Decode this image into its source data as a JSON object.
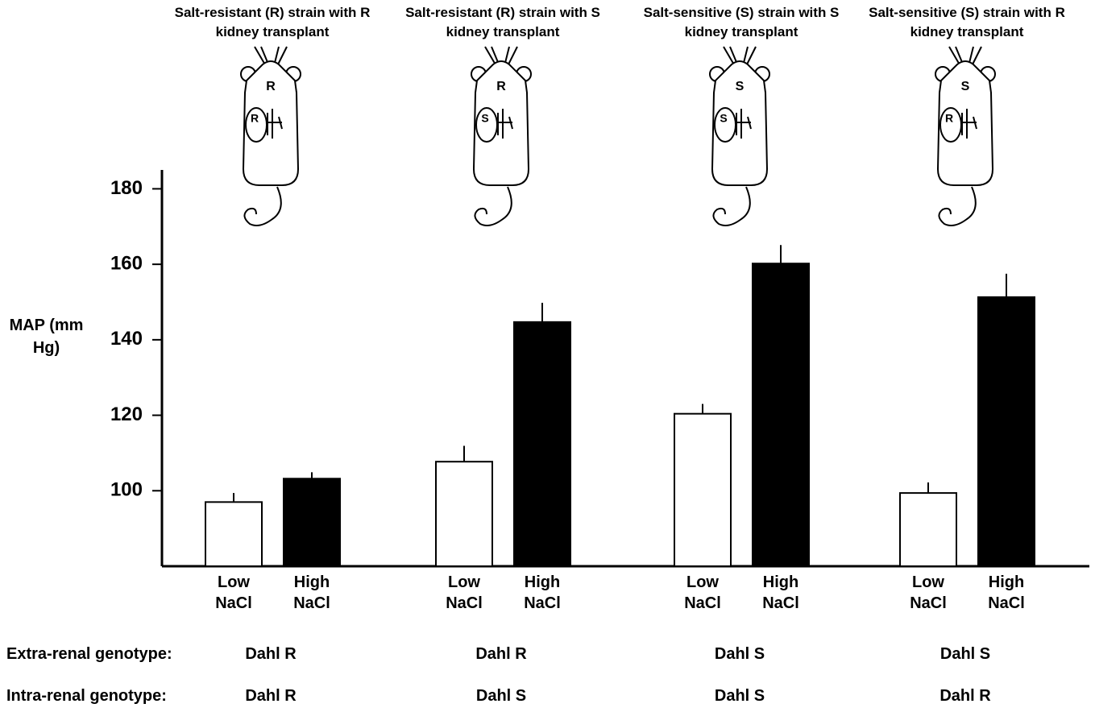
{
  "chart_data": {
    "type": "bar",
    "categories": [
      "Salt-resistant (R) strain with R kidney transplant",
      "Salt-resistant (R) strain with S kidney transplant",
      "Salt-sensitive (S) strain with S kidney transplant",
      "Salt-sensitive (S) strain with R kidney transplant"
    ],
    "rat_labels": [
      {
        "body": "R",
        "kidney": "R"
      },
      {
        "body": "R",
        "kidney": "S"
      },
      {
        "body": "S",
        "kidney": "S"
      },
      {
        "body": "S",
        "kidney": "R"
      }
    ],
    "series": [
      {
        "name": "Low NaCl",
        "color": "#ffffff",
        "values": [
          97.0,
          107.7,
          120.4,
          99.4
        ],
        "errors": [
          2.4,
          4.2,
          2.6,
          2.8
        ]
      },
      {
        "name": "High NaCl",
        "color": "#000000",
        "values": [
          103.2,
          144.7,
          160.2,
          151.3
        ],
        "errors": [
          1.7,
          5.1,
          4.9,
          6.2
        ]
      }
    ],
    "y_label": "MAP (mm Hg)",
    "ylim": [
      80,
      185
    ],
    "yticks": [
      100,
      120,
      140,
      160,
      180
    ],
    "rows": [
      {
        "label": "Extra-renal genotype:",
        "values": [
          "Dahl R",
          "Dahl R",
          "Dahl S",
          "Dahl S"
        ]
      },
      {
        "label": "Intra-renal genotype:",
        "values": [
          "Dahl R",
          "Dahl S",
          "Dahl S",
          "Dahl R"
        ]
      }
    ]
  }
}
